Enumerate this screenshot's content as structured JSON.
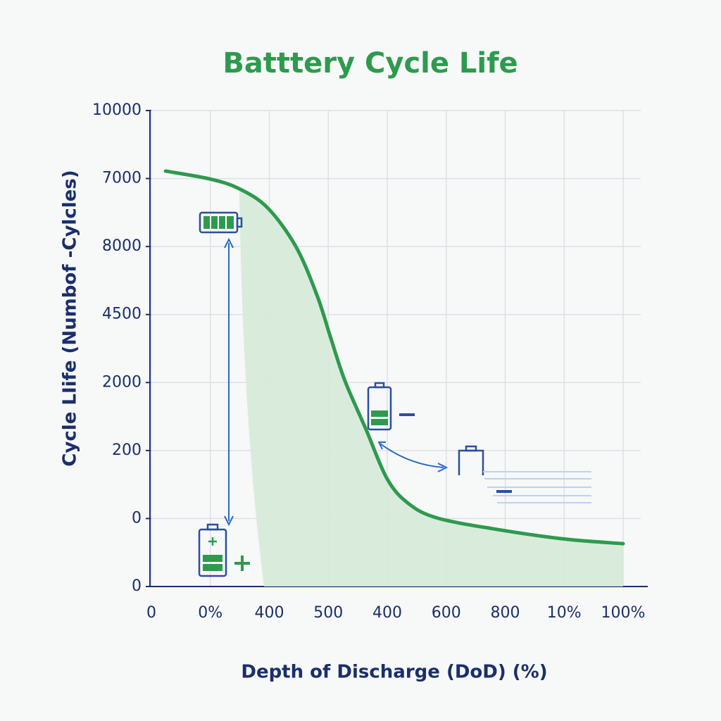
{
  "chart_data": {
    "type": "line",
    "title": "Batttery Cycle Life",
    "x_label": "Depth of Discharge (DoD) (%)",
    "y_label": "Cycle LIife (Numbof -Cylcles)",
    "xlim": [
      0,
      8
    ],
    "xticks": [
      {
        "value": 0,
        "label": "0"
      },
      {
        "value": 1,
        "label": "0%"
      },
      {
        "value": 2,
        "label": "400"
      },
      {
        "value": 3,
        "label": "500"
      },
      {
        "value": 4,
        "label": "400"
      },
      {
        "value": 5,
        "label": "600"
      },
      {
        "value": 6,
        "label": "800"
      },
      {
        "value": 7,
        "label": "10%"
      },
      {
        "value": 8,
        "label": "100%"
      }
    ],
    "ylim": [
      0,
      7
    ],
    "yticks": [
      {
        "value": 7,
        "label": "10000"
      },
      {
        "value": 6,
        "label": "7000"
      },
      {
        "value": 5,
        "label": "8000"
      },
      {
        "value": 4,
        "label": "4500"
      },
      {
        "value": 3,
        "label": "2000"
      },
      {
        "value": 2,
        "label": "200"
      },
      {
        "value": 1,
        "label": "0"
      },
      {
        "value": 0,
        "label": "0"
      }
    ],
    "grid": true,
    "series": [
      {
        "color": "#2e9a4e",
        "x": [
          0.24,
          1.01,
          1.49,
          1.97,
          2.45,
          2.81,
          3.04,
          3.28,
          3.64,
          4.0,
          4.36,
          4.84,
          5.79,
          6.99,
          8.0
        ],
        "values": [
          6.11,
          5.99,
          5.85,
          5.57,
          5.0,
          4.28,
          3.66,
          3.03,
          2.31,
          1.58,
          1.22,
          1.01,
          0.85,
          0.7,
          0.63
        ]
      }
    ]
  }
}
